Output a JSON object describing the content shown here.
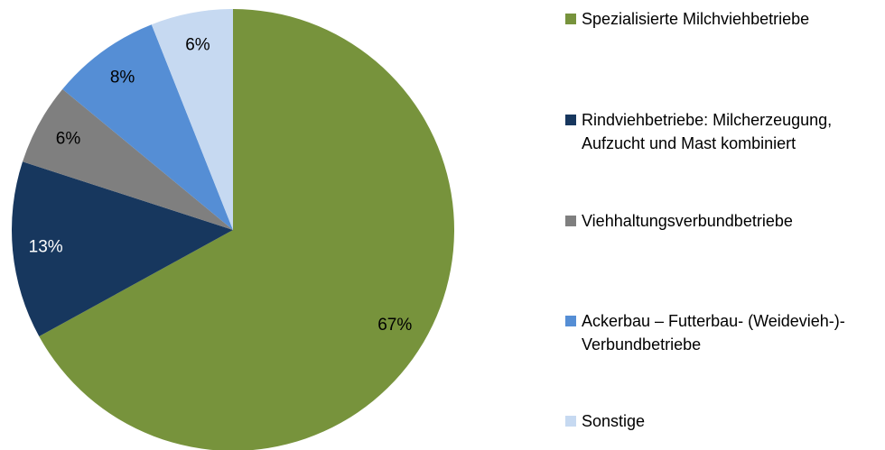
{
  "chart_data": {
    "type": "pie",
    "categories": [
      "Spezialisierte Milchviehbetriebe",
      "Rindviehbetriebe: Milcherzeugung, Aufzucht und Mast kombiniert",
      "Viehhaltungsverbundbetriebe",
      "Ackerbau – Futterbau- (Weidevieh-)-Verbundbetriebe",
      "Sonstige"
    ],
    "values": [
      67,
      13,
      6,
      8,
      6
    ],
    "value_labels": [
      "67%",
      "13%",
      "6%",
      "8%",
      "6%"
    ],
    "colors": [
      "#77933c",
      "#17375e",
      "#7f7f7f",
      "#558ed5",
      "#c6d9f1"
    ],
    "label_colors": [
      "#000000",
      "#ffffff",
      "#000000",
      "#000000",
      "#000000"
    ],
    "legend": "right"
  }
}
